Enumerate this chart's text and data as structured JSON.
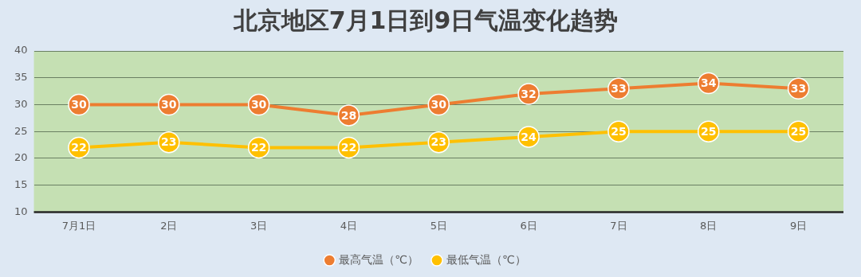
{
  "chart_data": {
    "type": "line",
    "title": "北京地区7月1日到9日气温变化趋势",
    "categories": [
      "7月1日",
      "2日",
      "3日",
      "4日",
      "5日",
      "6日",
      "7日",
      "8日",
      "9日"
    ],
    "series": [
      {
        "name": "最高气温（℃）",
        "color": "#ed7d31",
        "values": [
          30,
          30,
          30,
          28,
          30,
          32,
          33,
          34,
          33
        ]
      },
      {
        "name": "最低气温（℃）",
        "color": "#ffc000",
        "values": [
          22,
          23,
          22,
          22,
          23,
          24,
          25,
          25,
          25
        ]
      }
    ],
    "ylim": [
      10,
      40
    ],
    "yticks": [
      10,
      15,
      20,
      25,
      30,
      35,
      40
    ],
    "grid": "y",
    "legend": "bottom",
    "marker": "circle",
    "line_style": "solid",
    "data_labels": true
  }
}
